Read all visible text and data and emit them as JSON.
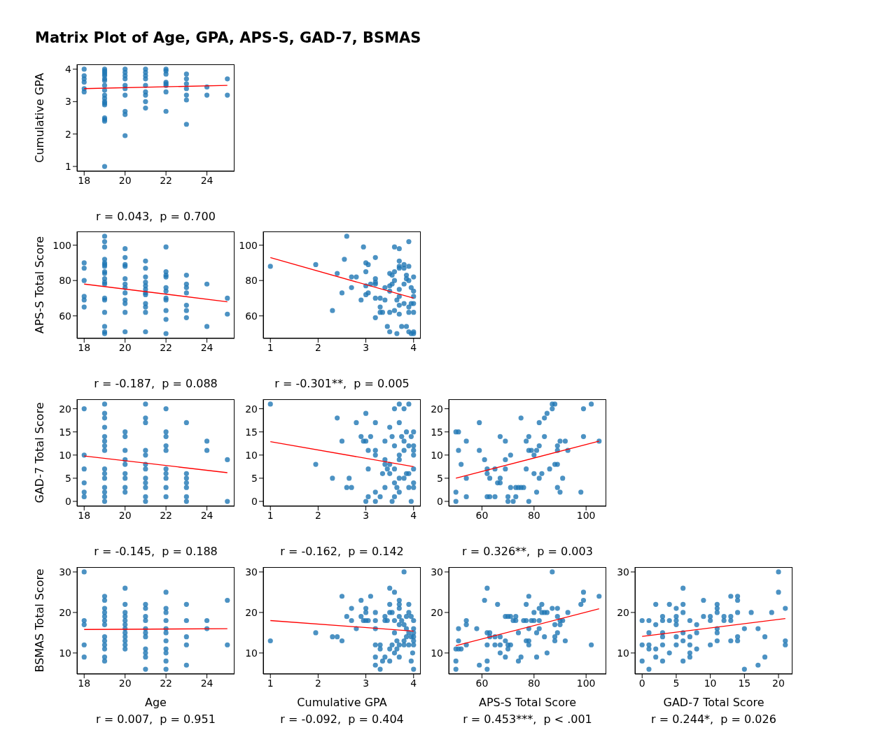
{
  "chart_data": [
    {
      "type": "scatter",
      "title": "Matrix Plot of Age, GPA, APS-S, GAD-7, BSMAS",
      "ylabel": "Cumulative GPA",
      "annotations": [
        "r = 0.043,  p = 0.700"
      ],
      "xlim": [
        17.65,
        25.35
      ],
      "xticks": [
        18,
        20,
        22,
        24
      ],
      "ylim": [
        0.85,
        4.15
      ],
      "yticks": [
        1,
        2,
        3,
        4
      ],
      "marker": "circle",
      "series": [
        {
          "color": "#1f77b4",
          "x": [
            18,
            18,
            18,
            18,
            18,
            18,
            19,
            19,
            19,
            19,
            19,
            19,
            19,
            19,
            19,
            19,
            19,
            19,
            19,
            19,
            19,
            19,
            19,
            19,
            20,
            20,
            20,
            20,
            20,
            20,
            20,
            20,
            20,
            20,
            21,
            21,
            21,
            21,
            21,
            21,
            21,
            21,
            21,
            22,
            22,
            22,
            22,
            22,
            22,
            22,
            22,
            23,
            23,
            23,
            23,
            23,
            23,
            23,
            24,
            24,
            25,
            25
          ],
          "values": [
            4.0,
            3.8,
            3.7,
            3.6,
            3.4,
            3.3,
            4.0,
            3.95,
            3.9,
            3.85,
            3.8,
            3.7,
            3.65,
            3.5,
            3.35,
            3.2,
            3.1,
            3.0,
            2.95,
            2.9,
            2.5,
            2.45,
            2.4,
            1.0,
            4.0,
            3.9,
            3.8,
            3.7,
            3.5,
            3.4,
            3.2,
            2.7,
            2.6,
            1.95,
            4.0,
            3.9,
            3.8,
            3.7,
            3.5,
            3.3,
            3.2,
            3.0,
            2.8,
            4.0,
            3.95,
            3.85,
            3.6,
            3.55,
            3.5,
            3.3,
            2.7,
            3.85,
            3.7,
            3.55,
            3.4,
            3.2,
            3.05,
            2.3,
            3.45,
            3.2,
            3.7,
            3.2
          ]
        },
        {
          "type": "line",
          "color": "#ff0000",
          "marker": "none",
          "x": [
            18,
            25
          ],
          "values": [
            3.4,
            3.5
          ]
        }
      ]
    },
    {
      "type": "scatter",
      "ylabel": "APS-S Total Score",
      "annotations": [
        "r = -0.187,  p = 0.088"
      ],
      "xlim": [
        17.65,
        25.35
      ],
      "xticks": [
        18,
        20,
        22,
        24
      ],
      "ylim": [
        47.25,
        107.75
      ],
      "yticks": [
        60,
        80,
        100
      ],
      "marker": "circle",
      "series": [
        {
          "color": "#1f77b4",
          "x": [
            18,
            18,
            18,
            18,
            18,
            18,
            19,
            19,
            19,
            19,
            19,
            19,
            19,
            19,
            19,
            19,
            19,
            19,
            19,
            19,
            19,
            19,
            19,
            19,
            20,
            20,
            20,
            20,
            20,
            20,
            20,
            20,
            20,
            20,
            20,
            20,
            21,
            21,
            21,
            21,
            21,
            21,
            21,
            21,
            21,
            21,
            21,
            21,
            22,
            22,
            22,
            22,
            22,
            22,
            22,
            22,
            22,
            22,
            22,
            23,
            23,
            23,
            23,
            23,
            23,
            23,
            24,
            24,
            25,
            25
          ],
          "values": [
            90,
            87,
            80,
            71,
            69,
            65,
            105,
            102,
            99,
            92,
            90,
            89,
            88,
            85,
            84,
            81,
            79,
            78,
            70,
            69,
            62,
            54,
            51,
            50,
            98,
            93,
            89,
            88,
            81,
            78,
            76,
            73,
            69,
            67,
            62,
            51,
            91,
            87,
            82,
            79,
            77,
            75,
            73,
            72,
            67,
            65,
            62,
            51,
            99,
            85,
            83,
            82,
            76,
            74,
            70,
            69,
            63,
            58,
            50,
            83,
            78,
            76,
            73,
            66,
            63,
            59,
            78,
            54,
            70,
            61
          ]
        },
        {
          "type": "line",
          "color": "#ff0000",
          "marker": "none",
          "x": [
            18,
            25
          ],
          "values": [
            78,
            68
          ]
        }
      ]
    },
    {
      "type": "scatter",
      "annotations": [
        "r = -0.301**,  p = 0.005"
      ],
      "xlim": [
        0.85,
        4.15
      ],
      "xticks": [
        1,
        2,
        3,
        4
      ],
      "ylim": [
        47.25,
        107.75
      ],
      "yticks": [
        60,
        80,
        100
      ],
      "marker": "circle",
      "series": [
        {
          "color": "#1f77b4",
          "x": [
            1.0,
            1.95,
            2.3,
            2.4,
            2.5,
            2.6,
            2.55,
            2.7,
            2.7,
            2.8,
            2.9,
            2.95,
            3.0,
            3.0,
            3.05,
            3.0,
            3.0,
            3.05,
            3.1,
            3.2,
            3.2,
            3.2,
            3.2,
            3.2,
            3.2,
            3.3,
            3.3,
            3.3,
            3.35,
            3.4,
            3.4,
            3.45,
            3.5,
            3.5,
            3.5,
            3.5,
            3.5,
            3.55,
            3.55,
            3.6,
            3.6,
            3.6,
            3.6,
            3.65,
            3.65,
            3.7,
            3.7,
            3.7,
            3.7,
            3.7,
            3.7,
            3.7,
            3.7,
            3.75,
            3.8,
            3.8,
            3.8,
            3.8,
            3.85,
            3.85,
            3.85,
            3.9,
            3.9,
            3.9,
            3.9,
            3.9,
            3.95,
            3.95,
            4.0,
            4.0,
            4.0,
            4.0,
            4.0,
            4.0,
            4.0,
            3.95,
            3.9
          ],
          "values": [
            88,
            89,
            63,
            84,
            73,
            105,
            92,
            76,
            82,
            82,
            69,
            99,
            90,
            85,
            89,
            77,
            72,
            73,
            78,
            93,
            81,
            79,
            78,
            70,
            59,
            70,
            65,
            62,
            62,
            76,
            69,
            54,
            51,
            62,
            74,
            77,
            84,
            83,
            78,
            99,
            85,
            80,
            63,
            69,
            50,
            98,
            91,
            88,
            87,
            75,
            71,
            66,
            61,
            54,
            89,
            87,
            67,
            78,
            83,
            81,
            54,
            102,
            80,
            65,
            62,
            51,
            76,
            50,
            82,
            74,
            71,
            67,
            62,
            51,
            50,
            67,
            88
          ]
        },
        {
          "type": "line",
          "color": "#ff0000",
          "marker": "none",
          "x": [
            1,
            4
          ],
          "values": [
            93,
            70
          ]
        }
      ]
    },
    {
      "type": "scatter",
      "ylabel": "GAD-7 Total Score",
      "annotations": [
        "r = -0.145,  p = 0.188"
      ],
      "xlim": [
        17.65,
        25.35
      ],
      "xticks": [
        18,
        20,
        22,
        24
      ],
      "ylim": [
        -1.05,
        22.05
      ],
      "yticks": [
        0,
        5,
        10,
        15,
        20
      ],
      "marker": "circle",
      "series": [
        {
          "color": "#1f77b4",
          "x": [
            18,
            18,
            18,
            18,
            18,
            18,
            19,
            19,
            19,
            19,
            19,
            19,
            19,
            19,
            19,
            19,
            19,
            19,
            19,
            19,
            19,
            20,
            20,
            20,
            20,
            20,
            20,
            20,
            20,
            20,
            21,
            21,
            21,
            21,
            21,
            21,
            21,
            21,
            21,
            21,
            21,
            21,
            22,
            22,
            22,
            22,
            22,
            22,
            22,
            22,
            22,
            22,
            23,
            23,
            23,
            23,
            23,
            23,
            23,
            24,
            24,
            25,
            25
          ],
          "values": [
            20,
            10,
            7,
            4,
            2,
            1,
            21,
            19,
            18,
            16,
            14,
            13,
            12,
            11,
            7,
            6,
            5,
            3,
            2,
            1,
            0,
            15,
            14,
            11,
            9,
            8,
            6,
            5,
            3,
            2,
            21,
            18,
            17,
            11,
            10,
            8,
            7,
            5,
            4,
            3,
            1,
            0,
            20,
            15,
            14,
            12,
            11,
            7,
            6,
            5,
            3,
            1,
            17,
            6,
            5,
            4,
            3,
            1,
            0,
            13,
            11,
            9,
            0
          ]
        },
        {
          "type": "line",
          "color": "#ff0000",
          "marker": "none",
          "x": [
            18,
            25
          ],
          "values": [
            9.8,
            6.2
          ]
        }
      ]
    },
    {
      "type": "scatter",
      "annotations": [
        "r = -0.162,  p = 0.142"
      ],
      "xlim": [
        0.85,
        4.15
      ],
      "xticks": [
        1,
        2,
        3,
        4
      ],
      "ylim": [
        -1.05,
        22.05
      ],
      "yticks": [
        0,
        5,
        10,
        15,
        20
      ],
      "marker": "circle",
      "series": [
        {
          "color": "#1f77b4",
          "x": [
            1.0,
            1.95,
            2.3,
            2.4,
            2.5,
            2.6,
            2.65,
            2.7,
            2.8,
            2.9,
            2.95,
            3.0,
            3.0,
            3.05,
            3.05,
            3.0,
            3.05,
            3.1,
            3.2,
            3.2,
            3.2,
            3.2,
            3.2,
            3.3,
            3.35,
            3.4,
            3.4,
            3.4,
            3.4,
            3.45,
            3.5,
            3.5,
            3.5,
            3.55,
            3.55,
            3.6,
            3.6,
            3.6,
            3.6,
            3.6,
            3.65,
            3.7,
            3.7,
            3.7,
            3.7,
            3.7,
            3.7,
            3.75,
            3.8,
            3.8,
            3.8,
            3.8,
            3.85,
            3.85,
            3.9,
            3.9,
            3.9,
            3.9,
            3.95,
            3.95,
            4.0,
            4.0,
            4.0,
            4.0,
            4.0,
            4.0,
            4.0
          ],
          "values": [
            21,
            8,
            5,
            18,
            13,
            3,
            5,
            3,
            17,
            14,
            13,
            19,
            13,
            11,
            7,
            0,
            1,
            14,
            17,
            11,
            10,
            2,
            0,
            1,
            6,
            13,
            9,
            8,
            3,
            7,
            16,
            8,
            6,
            14,
            0,
            20,
            12,
            7,
            4,
            1,
            3,
            21,
            17,
            10,
            9,
            5,
            2,
            14,
            20,
            13,
            11,
            5,
            15,
            6,
            21,
            12,
            6,
            3,
            0,
            14,
            15,
            12,
            11,
            10,
            7,
            4,
            3
          ]
        },
        {
          "type": "line",
          "color": "#ff0000",
          "marker": "none",
          "x": [
            1,
            4
          ],
          "values": [
            12.9,
            7.5
          ]
        }
      ]
    },
    {
      "type": "scatter",
      "annotations": [
        "r = 0.326**,  p = 0.003"
      ],
      "xlim": [
        47.25,
        107.75
      ],
      "xticks": [
        60,
        80,
        100
      ],
      "ylim": [
        -1.05,
        22.05
      ],
      "yticks": [
        0,
        5,
        10,
        15,
        20
      ],
      "marker": "circle",
      "series": [
        {
          "color": "#1f77b4",
          "x": [
            50,
            51,
            50,
            50,
            51,
            52,
            54,
            54,
            54,
            59,
            59,
            61,
            62,
            62,
            62,
            63,
            63,
            65,
            65,
            66,
            67,
            67,
            67,
            69,
            69,
            69,
            70,
            70,
            71,
            71,
            72,
            73,
            73,
            74,
            75,
            75,
            76,
            77,
            77,
            78,
            78,
            78,
            79,
            80,
            80,
            81,
            81,
            82,
            82,
            82,
            83,
            84,
            84,
            85,
            86,
            87,
            87,
            88,
            88,
            89,
            89,
            89,
            89,
            90,
            90,
            91,
            92,
            93,
            98,
            99,
            99,
            102,
            105
          ],
          "values": [
            15,
            15,
            2,
            0,
            11,
            8,
            13,
            5,
            1,
            11,
            17,
            9,
            7,
            6,
            1,
            5,
            1,
            7,
            1,
            4,
            14,
            4,
            5,
            9,
            7,
            13,
            1,
            0,
            3,
            10,
            0,
            1,
            3,
            3,
            18,
            3,
            3,
            13,
            7,
            14,
            11,
            0,
            11,
            10,
            6,
            2,
            11,
            17,
            12,
            5,
            6,
            18,
            14,
            19,
            7,
            20,
            21,
            21,
            8,
            8,
            12,
            11,
            3,
            13,
            2,
            5,
            13,
            11,
            2,
            20,
            14,
            21,
            13
          ]
        },
        {
          "type": "line",
          "color": "#ff0000",
          "marker": "none",
          "x": [
            50,
            105
          ],
          "values": [
            5,
            13
          ]
        }
      ]
    },
    {
      "type": "scatter",
      "xlabel": "Age",
      "ylabel": "BSMAS Total Score",
      "annotations": [
        "r = 0.007,  p = 0.951"
      ],
      "xlim": [
        17.65,
        25.35
      ],
      "xticks": [
        18,
        20,
        22,
        24
      ],
      "ylim": [
        4.8,
        31.2
      ],
      "yticks": [
        10,
        20,
        30
      ],
      "marker": "circle",
      "series": [
        {
          "color": "#1f77b4",
          "x": [
            18,
            18,
            18,
            18,
            18,
            19,
            19,
            19,
            19,
            19,
            19,
            19,
            19,
            19,
            19,
            19,
            19,
            19,
            20,
            20,
            20,
            20,
            20,
            20,
            20,
            20,
            20,
            20,
            20,
            20,
            21,
            21,
            21,
            21,
            21,
            21,
            21,
            21,
            21,
            21,
            21,
            22,
            22,
            22,
            22,
            22,
            22,
            22,
            22,
            22,
            22,
            22,
            23,
            23,
            23,
            23,
            23,
            24,
            24,
            25,
            25
          ],
          "values": [
            30,
            18,
            17,
            12,
            9,
            24,
            23,
            21,
            20,
            19,
            18,
            17,
            14,
            13,
            12,
            11,
            9,
            8,
            26,
            22,
            20,
            19,
            18,
            17,
            16,
            15,
            14,
            13,
            12,
            11,
            22,
            21,
            19,
            18,
            16,
            15,
            14,
            11,
            10,
            9,
            6,
            25,
            21,
            20,
            18,
            16,
            15,
            13,
            11,
            10,
            8,
            6,
            22,
            18,
            14,
            12,
            7,
            18,
            16,
            23,
            12
          ]
        },
        {
          "type": "line",
          "color": "#ff0000",
          "marker": "none",
          "x": [
            18,
            25
          ],
          "values": [
            15.8,
            16.0
          ]
        }
      ]
    },
    {
      "type": "scatter",
      "xlabel": "Cumulative GPA",
      "annotations": [
        "r = -0.092,  p = 0.404"
      ],
      "xlim": [
        0.85,
        4.15
      ],
      "xticks": [
        1,
        2,
        3,
        4
      ],
      "ylim": [
        4.8,
        31.2
      ],
      "yticks": [
        10,
        20,
        30
      ],
      "marker": "circle",
      "series": [
        {
          "color": "#1f77b4",
          "x": [
            1.0,
            1.95,
            2.3,
            2.4,
            2.5,
            2.5,
            2.6,
            2.7,
            2.7,
            2.8,
            2.9,
            2.9,
            3.0,
            3.0,
            2.95,
            3.0,
            3.05,
            3.1,
            3.2,
            3.2,
            3.2,
            3.2,
            3.2,
            3.2,
            3.3,
            3.3,
            3.3,
            3.35,
            3.4,
            3.4,
            3.4,
            3.45,
            3.5,
            3.5,
            3.5,
            3.5,
            3.5,
            3.55,
            3.55,
            3.6,
            3.6,
            3.6,
            3.6,
            3.65,
            3.65,
            3.7,
            3.7,
            3.7,
            3.7,
            3.7,
            3.7,
            3.7,
            3.75,
            3.8,
            3.8,
            3.8,
            3.8,
            3.85,
            3.85,
            3.85,
            3.9,
            3.9,
            3.9,
            3.9,
            3.95,
            3.95,
            3.95,
            4.0,
            4.0,
            4.0,
            4.0,
            4.0,
            4.0,
            3.98,
            4.0
          ],
          "values": [
            13,
            15,
            14,
            14,
            24,
            13,
            19,
            21,
            18,
            16,
            23,
            19,
            21,
            20,
            18,
            18,
            18,
            24,
            20,
            18,
            16,
            12,
            9,
            7,
            12,
            11,
            6,
            8,
            19,
            18,
            9,
            18,
            26,
            22,
            20,
            11,
            8,
            20,
            12,
            25,
            18,
            15,
            10,
            13,
            11,
            23,
            22,
            21,
            19,
            17,
            12,
            9,
            18,
            30,
            17,
            13,
            12,
            19,
            16,
            14,
            22,
            20,
            15,
            12,
            19,
            8,
            14,
            18,
            16,
            15,
            14,
            13,
            12,
            10,
            6
          ]
        },
        {
          "type": "line",
          "color": "#ff0000",
          "marker": "none",
          "x": [
            1,
            4
          ],
          "values": [
            18,
            15.4
          ]
        }
      ]
    },
    {
      "type": "scatter",
      "xlabel": "APS-S Total Score",
      "annotations": [
        "r = 0.453***,  p < .001"
      ],
      "xlim": [
        47.25,
        107.75
      ],
      "xticks": [
        60,
        80,
        100
      ],
      "ylim": [
        4.8,
        31.2
      ],
      "yticks": [
        10,
        20,
        30
      ],
      "marker": "circle",
      "series": [
        {
          "color": "#1f77b4",
          "x": [
            50,
            50,
            50,
            51,
            51,
            51,
            52,
            54,
            54,
            54,
            58,
            59,
            61,
            62,
            62,
            62,
            62,
            62,
            63,
            63,
            65,
            65,
            66,
            67,
            67,
            67,
            69,
            69,
            69,
            70,
            70,
            70,
            71,
            71,
            72,
            73,
            73,
            74,
            74,
            75,
            76,
            77,
            77,
            77,
            78,
            78,
            78,
            78,
            79,
            80,
            80,
            81,
            81,
            82,
            82,
            82,
            83,
            83,
            84,
            84,
            85,
            85,
            87,
            87,
            88,
            88,
            88,
            89,
            89,
            89,
            90,
            90,
            91,
            92,
            93,
            98,
            99,
            99,
            102,
            105
          ],
          "values": [
            11,
            8,
            6,
            16,
            13,
            11,
            11,
            18,
            17,
            12,
            16,
            7,
            23,
            26,
            15,
            12,
            8,
            6,
            15,
            14,
            14,
            12,
            22,
            14,
            12,
            10,
            19,
            13,
            9,
            19,
            12,
            11,
            19,
            12,
            18,
            19,
            18,
            15,
            8,
            9,
            18,
            22,
            18,
            13,
            24,
            16,
            13,
            12,
            18,
            20,
            18,
            15,
            9,
            21,
            18,
            16,
            22,
            20,
            20,
            14,
            20,
            10,
            30,
            21,
            17,
            14,
            13,
            21,
            19,
            15,
            18,
            17,
            18,
            13,
            20,
            22,
            25,
            23,
            12,
            24
          ]
        },
        {
          "type": "line",
          "color": "#ff0000",
          "marker": "none",
          "x": [
            50,
            105
          ],
          "values": [
            11.8,
            20.9
          ]
        }
      ]
    },
    {
      "type": "scatter",
      "xlabel": "GAD-7 Total Score",
      "annotations": [
        "r = 0.244*,  p = 0.026"
      ],
      "xlim": [
        -1.05,
        22.05
      ],
      "xticks": [
        0,
        5,
        10,
        15,
        20
      ],
      "ylim": [
        4.8,
        31.2
      ],
      "yticks": [
        10,
        20,
        30
      ],
      "marker": "circle",
      "series": [
        {
          "color": "#1f77b4",
          "x": [
            0,
            0,
            0,
            1,
            1,
            1,
            1,
            1,
            2,
            2,
            2,
            2,
            3,
            3,
            3,
            3,
            3,
            3,
            4,
            4,
            4,
            5,
            5,
            5,
            5,
            5,
            5,
            6,
            6,
            6,
            6,
            6,
            6,
            7,
            7,
            7,
            7,
            7,
            8,
            8,
            8,
            9,
            9,
            10,
            10,
            10,
            11,
            11,
            11,
            11,
            11,
            11,
            12,
            12,
            13,
            13,
            13,
            13,
            14,
            14,
            14,
            14,
            14,
            15,
            15,
            16,
            17,
            17,
            18,
            18,
            19,
            20,
            20,
            21,
            21,
            21
          ],
          "values": [
            18,
            12,
            8,
            18,
            15,
            12,
            11,
            6,
            22,
            17,
            11,
            9,
            19,
            18,
            15,
            14,
            12,
            8,
            22,
            18,
            10,
            21,
            19,
            18,
            17,
            14,
            12,
            26,
            22,
            20,
            15,
            13,
            8,
            18,
            14,
            12,
            10,
            9,
            17,
            15,
            11,
            23,
            19,
            19,
            18,
            12,
            22,
            21,
            20,
            16,
            15,
            13,
            19,
            18,
            24,
            19,
            18,
            13,
            24,
            23,
            20,
            14,
            13,
            6,
            16,
            20,
            16,
            7,
            14,
            9,
            20,
            30,
            25,
            21,
            13,
            12
          ]
        },
        {
          "type": "line",
          "color": "#ff0000",
          "marker": "none",
          "x": [
            0,
            21
          ],
          "values": [
            14.1,
            18.5
          ]
        }
      ]
    }
  ]
}
